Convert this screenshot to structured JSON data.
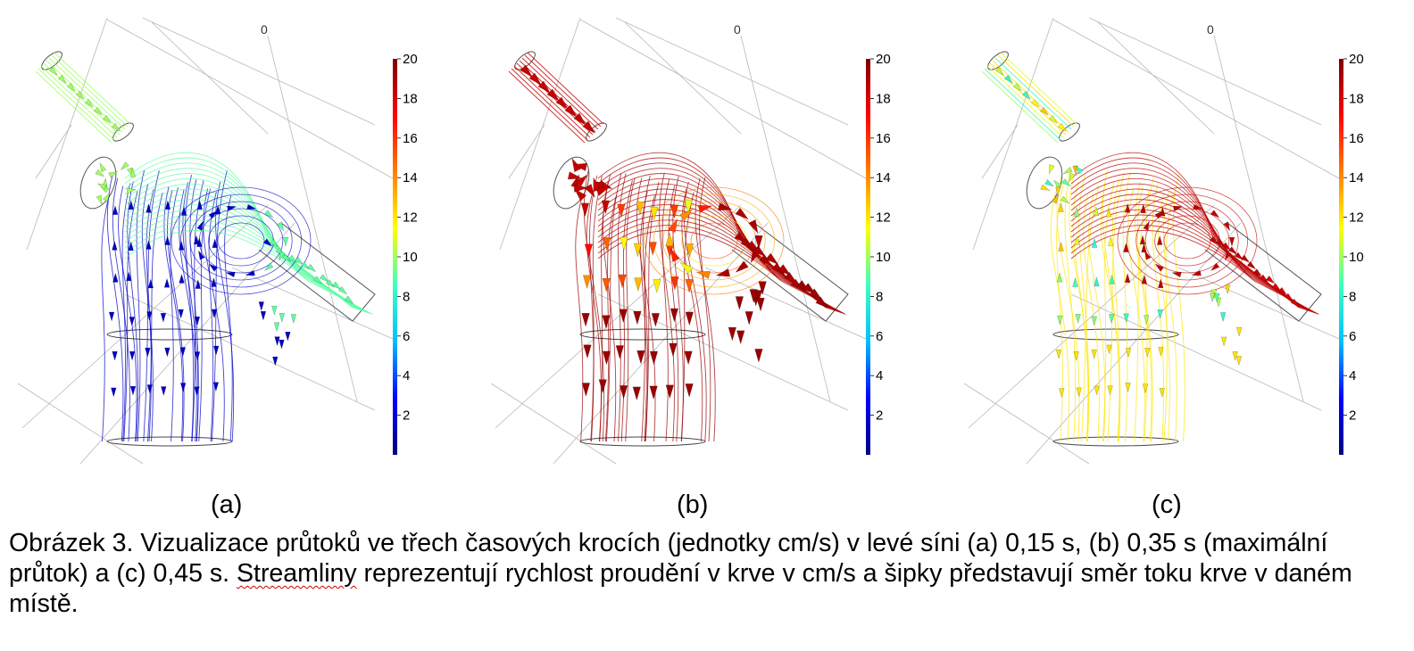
{
  "panels": [
    {
      "letter": "(a)",
      "axis_zero": "0",
      "scheme": "a"
    },
    {
      "letter": "(b)",
      "axis_zero": "0",
      "scheme": "b"
    },
    {
      "letter": "(c)",
      "axis_zero": "0",
      "scheme": "c"
    }
  ],
  "colorbar": {
    "ticks": [
      "20",
      "18",
      "16",
      "14",
      "12",
      "10",
      "8",
      "6",
      "4",
      "2"
    ],
    "min": 0,
    "max": 20,
    "stops": [
      "#00007f",
      "#0000ff",
      "#00bfff",
      "#3fffbf",
      "#ffff00",
      "#ff7f00",
      "#ff0000",
      "#7f0000"
    ]
  },
  "caption": {
    "part1": "Obrázek 3.  Vizualizace průtoků ve třech časových krocích (jednotky cm/s) v levé síni (a) 0,15 s, (b) 0,35 s (maximální průtok) a (c) 0,45 s. ",
    "underlined": "Streamliny",
    "part2": " reprezentují rychlost proudění v krve v cm/s a šipky představují směr toku krve v daném místě."
  }
}
